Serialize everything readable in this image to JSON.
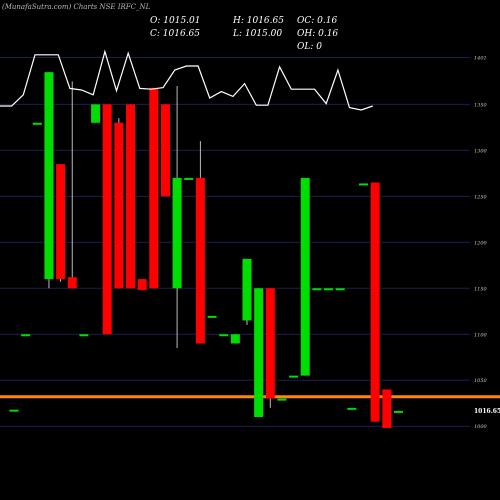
{
  "watermark": "(MunafaSutra.com) Charts NSE IRFC_NL",
  "ohlc": {
    "o": "O: 1015.01",
    "h": "H: 1016.65",
    "c": "C: 1016.65",
    "l": "L: 1015.00",
    "oc": "OC: 0.16",
    "oh": "OH: 0.16",
    "ol": "OL: 0"
  },
  "colors": {
    "up": "#00dd00",
    "down": "#ff0000",
    "line": "#ffffff",
    "grid": "#1c1c55",
    "level": "#ff8800",
    "bg": "#000000"
  },
  "chart_data": {
    "type": "candlestick",
    "ylim": [
      985,
      1420
    ],
    "yticks": [
      1000,
      1050,
      1100,
      1150,
      1200,
      1250,
      1300,
      1350,
      1401
    ],
    "last_price": "1016.65",
    "last_price_value": 1016.65,
    "hline": 1032,
    "candles": [
      {
        "o": 1018,
        "h": 1018,
        "l": 1018,
        "c": 1018
      },
      {
        "o": 1100,
        "h": 1100,
        "l": 1100,
        "c": 1100
      },
      {
        "o": 1330,
        "h": 1330,
        "l": 1330,
        "c": 1330
      },
      {
        "o": 1160,
        "h": 1385,
        "l": 1150,
        "c": 1385
      },
      {
        "o": 1285,
        "h": 1285,
        "l": 1157,
        "c": 1160
      },
      {
        "o": 1162,
        "h": 1375,
        "l": 1150,
        "c": 1150
      },
      {
        "o": 1100,
        "h": 1100,
        "l": 1100,
        "c": 1100
      },
      {
        "o": 1330,
        "h": 1350,
        "l": 1330,
        "c": 1350
      },
      {
        "o": 1350,
        "h": 1350,
        "l": 1100,
        "c": 1100
      },
      {
        "o": 1330,
        "h": 1335,
        "l": 1150,
        "c": 1150
      },
      {
        "o": 1350,
        "h": 1350,
        "l": 1150,
        "c": 1150
      },
      {
        "o": 1160,
        "h": 1160,
        "l": 1148,
        "c": 1148
      },
      {
        "o": 1368,
        "h": 1368,
        "l": 1150,
        "c": 1150
      },
      {
        "o": 1350,
        "h": 1350,
        "l": 1250,
        "c": 1250
      },
      {
        "o": 1150,
        "h": 1370,
        "l": 1085,
        "c": 1270
      },
      {
        "o": 1270,
        "h": 1270,
        "l": 1270,
        "c": 1270
      },
      {
        "o": 1270,
        "h": 1310,
        "l": 1090,
        "c": 1090
      },
      {
        "o": 1120,
        "h": 1120,
        "l": 1120,
        "c": 1120
      },
      {
        "o": 1100,
        "h": 1100,
        "l": 1100,
        "c": 1100
      },
      {
        "o": 1090,
        "h": 1100,
        "l": 1090,
        "c": 1100
      },
      {
        "o": 1115,
        "h": 1182,
        "l": 1110,
        "c": 1182
      },
      {
        "o": 1010,
        "h": 1150,
        "l": 1010,
        "c": 1150
      },
      {
        "o": 1150,
        "h": 1150,
        "l": 1020,
        "c": 1030
      },
      {
        "o": 1030,
        "h": 1030,
        "l": 1030,
        "c": 1030
      },
      {
        "o": 1055,
        "h": 1055,
        "l": 1055,
        "c": 1055
      },
      {
        "o": 1055,
        "h": 1270,
        "l": 1055,
        "c": 1270
      },
      {
        "o": 1150,
        "h": 1150,
        "l": 1150,
        "c": 1150
      },
      {
        "o": 1150,
        "h": 1150,
        "l": 1150,
        "c": 1150
      },
      {
        "o": 1150,
        "h": 1150,
        "l": 1150,
        "c": 1150
      },
      {
        "o": 1020,
        "h": 1020,
        "l": 1020,
        "c": 1020
      },
      {
        "o": 1264,
        "h": 1264,
        "l": 1264,
        "c": 1264
      },
      {
        "o": 1265,
        "h": 1265,
        "l": 1005,
        "c": 1005
      },
      {
        "o": 1040,
        "h": 1040,
        "l": 998,
        "c": 998
      },
      {
        "o": 1015.01,
        "h": 1016.65,
        "l": 1015.0,
        "c": 1016.65
      }
    ],
    "line_series": {
      "name": "",
      "values": [
        0.3,
        0.3,
        0.44,
        0.94,
        0.94,
        0.94,
        0.52,
        0.5,
        0.44,
        0.98,
        0.49,
        0.96,
        0.52,
        0.51,
        0.53,
        0.75,
        0.8,
        0.8,
        0.4,
        0.48,
        0.42,
        0.58,
        0.31,
        0.31,
        0.79,
        0.51,
        0.51,
        0.51,
        0.33,
        0.75,
        0.28,
        0.25,
        0.3
      ]
    }
  }
}
